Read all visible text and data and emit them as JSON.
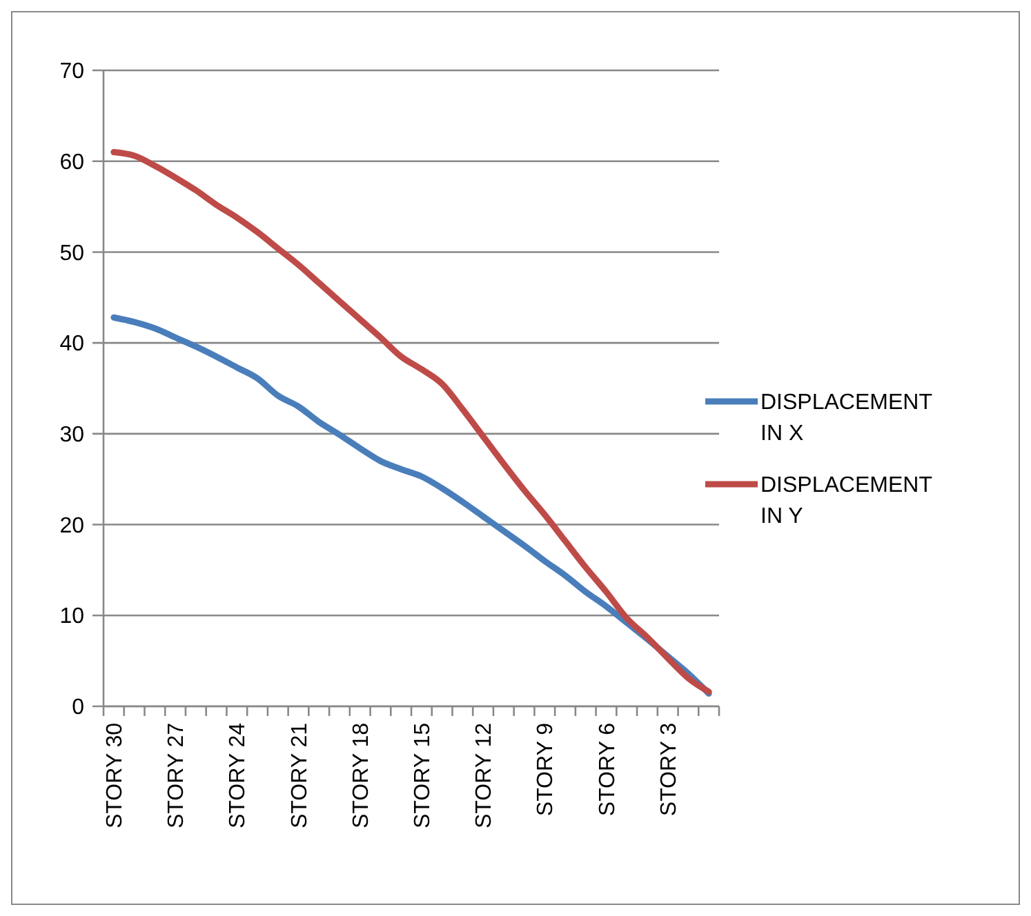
{
  "chart_data": {
    "type": "line",
    "categories": [
      "STORY 30",
      null,
      null,
      "STORY 27",
      null,
      null,
      "STORY 24",
      null,
      null,
      "STORY 21",
      null,
      null,
      "STORY 18",
      null,
      null,
      "STORY 15",
      null,
      null,
      "STORY 12",
      null,
      null,
      "STORY 9",
      null,
      null,
      "STORY 6",
      null,
      null,
      "STORY 3",
      null,
      null
    ],
    "series": [
      {
        "name": "DISPLACEMENT IN X",
        "color": "#4a7ebb",
        "values": [
          42.8,
          42.3,
          41.6,
          40.6,
          39.6,
          38.5,
          37.3,
          36.1,
          34.2,
          33.0,
          31.3,
          29.9,
          28.4,
          27.0,
          26.1,
          25.3,
          24.0,
          22.5,
          20.9,
          19.3,
          17.7,
          16.0,
          14.4,
          12.6,
          11.0,
          9.2,
          7.4,
          5.5,
          3.6,
          1.4
        ]
      },
      {
        "name": "DISPLACEMENT IN Y",
        "color": "#be4b48",
        "values": [
          61.0,
          60.6,
          59.5,
          58.2,
          56.8,
          55.2,
          53.8,
          52.2,
          50.4,
          48.6,
          46.6,
          44.6,
          42.6,
          40.6,
          38.5,
          37.1,
          35.5,
          32.7,
          29.7,
          26.7,
          23.8,
          21.1,
          18.2,
          15.3,
          12.6,
          9.7,
          7.6,
          5.3,
          3.1,
          1.6
        ]
      }
    ],
    "ylim": [
      0,
      70
    ],
    "yticks": [
      0,
      10,
      20,
      30,
      40,
      50,
      60,
      70
    ],
    "grid": "y",
    "legend": "right",
    "marker": "none",
    "line_style": "solid"
  }
}
